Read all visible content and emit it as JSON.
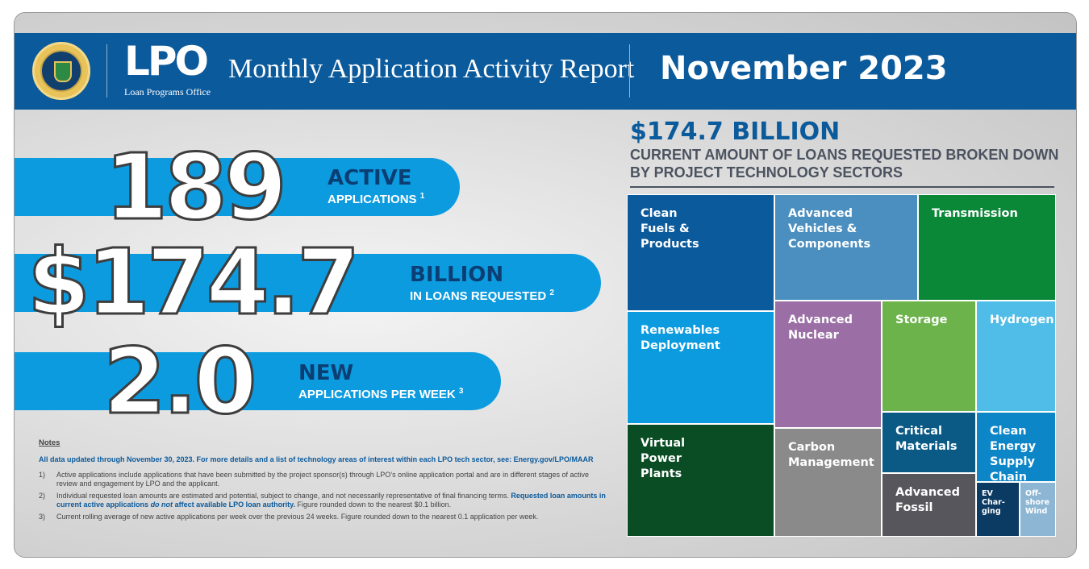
{
  "header": {
    "office_abbr": "LPO",
    "office_name": "Loan Programs Office",
    "report_title": "Monthly Application Activity Report",
    "month": "November 2023"
  },
  "stats": [
    {
      "value": "189",
      "label": "ACTIVE",
      "sub": "APPLICATIONS",
      "note": "1"
    },
    {
      "value": "$174.7",
      "label": "BILLION",
      "sub": "IN LOANS REQUESTED",
      "note": "2"
    },
    {
      "value": "2.0",
      "label": "NEW",
      "sub": "APPLICATIONS PER WEEK",
      "note": "3"
    }
  ],
  "notes": {
    "heading": "Notes",
    "lead": "All data updated through November 30, 2023. For more details and a list of technology areas of interest within each LPO tech sector, see: Energy.gov/LPO/MAAR",
    "items": [
      {
        "num": "1)",
        "text": "Active applications include applications that have been submitted by the project sponsor(s) through LPO’s online application portal and are in different stages of active review and engagement by LPO and the applicant."
      },
      {
        "num": "2)",
        "text": "Individual requested loan amounts are estimated and potential, subject to change, and not necessarily representative of final financing terms.",
        "bold1": "Requested loan amounts in current active applications",
        "italic": "do not",
        "bold2": "affect available LPO loan authority.",
        "tail": "Figure rounded down to the nearest $0.1 billion."
      },
      {
        "num": "3)",
        "text": "Current rolling average of new active applications per week over the previous 24 weeks. Figure rounded down to the nearest 0.1 application per week."
      }
    ]
  },
  "treemap": {
    "total": "$174.7 BILLION",
    "subtitle": "CURRENT AMOUNT OF LOANS REQUESTED BROKEN DOWN BY PROJECT TECHNOLOGY SECTORS",
    "sectors": [
      {
        "label": "Clean\nFuels &\nProducts",
        "color": "#0b5a9c"
      },
      {
        "label": "Advanced\nVehicles &\nComponents",
        "color": "#4a8fc0"
      },
      {
        "label": "Transmission",
        "color": "#0a8838"
      },
      {
        "label": "Renewables\nDeployment",
        "color": "#0d9be0"
      },
      {
        "label": "Advanced\nNuclear",
        "color": "#9b6fa6"
      },
      {
        "label": "Storage",
        "color": "#6bb34a"
      },
      {
        "label": "Hydrogen",
        "color": "#4fbde8"
      },
      {
        "label": "Virtual\nPower\nPlants",
        "color": "#0a4d24"
      },
      {
        "label": "Carbon\nManagement",
        "color": "#8a8a8a"
      },
      {
        "label": "Critical\nMaterials",
        "color": "#0b5a85"
      },
      {
        "label": "Clean\nEnergy\nSupply\nChain",
        "color": "#0d86c8"
      },
      {
        "label": "Advanced\nFossil",
        "color": "#56565c"
      },
      {
        "label": "EV\nChar-\nging",
        "color": "#0b3a62"
      },
      {
        "label": "Off-\nshore\nWind",
        "color": "#8cb6d4"
      }
    ]
  }
}
